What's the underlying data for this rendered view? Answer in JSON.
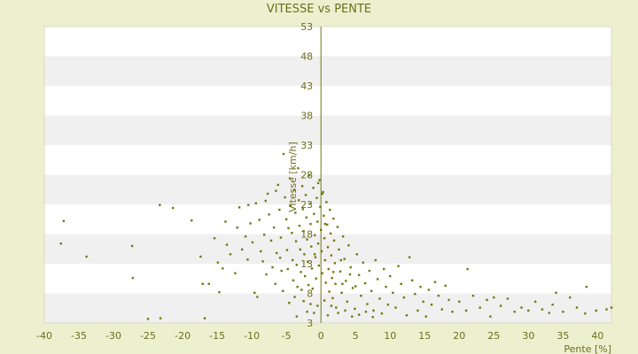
{
  "chart_data": {
    "type": "scatter",
    "title": "VITESSE vs PENTE",
    "xlabel": "Pente [%]",
    "ylabel": "Vitesse [km/h]",
    "xlim": [
      -40,
      42
    ],
    "ylim": [
      3,
      53
    ],
    "x_ticks": [
      -40,
      -35,
      -30,
      -25,
      -20,
      -15,
      -10,
      -5,
      0,
      5,
      10,
      15,
      20,
      25,
      30,
      35,
      40
    ],
    "y_ticks": [
      3,
      8,
      13,
      18,
      23,
      28,
      33,
      38,
      43,
      48,
      53
    ],
    "grid": "horizontal bands",
    "legend": "none",
    "colors": {
      "background": "#edf0cf",
      "band_light": "#ffffff",
      "band_shade": "#f0f0f0",
      "marker": "#6f7a12",
      "text": "#6b6f1c"
    },
    "series": [
      {
        "points": [
          [
            -37.2,
            20.2
          ],
          [
            -37.6,
            16.4
          ],
          [
            -33.9,
            14.2
          ],
          [
            -27.3,
            16.0
          ],
          [
            -27.2,
            10.6
          ],
          [
            -23.3,
            22.9
          ],
          [
            -25.0,
            3.7
          ],
          [
            -23.2,
            3.8
          ],
          [
            -21.4,
            22.4
          ],
          [
            -18.7,
            20.3
          ],
          [
            -17.4,
            14.2
          ],
          [
            -17.1,
            9.6
          ],
          [
            -16.2,
            9.6
          ],
          [
            -16.8,
            3.8
          ],
          [
            -15.4,
            17.3
          ],
          [
            -14.9,
            13.2
          ],
          [
            -14.7,
            8.2
          ],
          [
            -14.2,
            12.2
          ],
          [
            -13.8,
            20.1
          ],
          [
            -13.6,
            16.2
          ],
          [
            -13.1,
            14.6
          ],
          [
            -12.4,
            11.4
          ],
          [
            -12.1,
            19.1
          ],
          [
            -11.8,
            22.5
          ],
          [
            -11.4,
            15.4
          ],
          [
            -10.9,
            17.6
          ],
          [
            -10.6,
            13.7
          ],
          [
            -10.2,
            19.8
          ],
          [
            -9.9,
            16.6
          ],
          [
            -9.6,
            8.1
          ],
          [
            -9.4,
            23.2
          ],
          [
            -9.2,
            7.4
          ],
          [
            -8.9,
            20.4
          ],
          [
            -8.7,
            15.1
          ],
          [
            -8.4,
            13.4
          ],
          [
            -8.2,
            17.9
          ],
          [
            -7.9,
            11.2
          ],
          [
            -7.7,
            24.8
          ],
          [
            -7.5,
            21.3
          ],
          [
            -7.2,
            16.9
          ],
          [
            -7.0,
            12.4
          ],
          [
            -6.8,
            19.1
          ],
          [
            -6.6,
            9.6
          ],
          [
            -6.4,
            14.8
          ],
          [
            -6.2,
            26.3
          ],
          [
            -6.0,
            22.1
          ],
          [
            -5.8,
            17.4
          ],
          [
            -5.7,
            11.8
          ],
          [
            -5.5,
            8.4
          ],
          [
            -5.4,
            31.5
          ],
          [
            -5.2,
            24.2
          ],
          [
            -5.0,
            20.5
          ],
          [
            -4.9,
            15.3
          ],
          [
            -4.8,
            12.1
          ],
          [
            -4.6,
            6.4
          ],
          [
            -4.5,
            27.4
          ],
          [
            -4.4,
            22.8
          ],
          [
            -4.2,
            18.2
          ],
          [
            -4.1,
            13.6
          ],
          [
            -4.0,
            10.2
          ],
          [
            -3.9,
            25.4
          ],
          [
            -3.7,
            21.6
          ],
          [
            -3.6,
            16.8
          ],
          [
            -3.5,
            12.8
          ],
          [
            -3.4,
            9.1
          ],
          [
            -3.3,
            29.1
          ],
          [
            -3.2,
            23.7
          ],
          [
            -3.1,
            19.4
          ],
          [
            -3.0,
            15.4
          ],
          [
            -2.9,
            11.6
          ],
          [
            -2.8,
            8.6
          ],
          [
            -2.7,
            26.1
          ],
          [
            -2.6,
            22.2
          ],
          [
            -2.5,
            18.5
          ],
          [
            -2.4,
            14.6
          ],
          [
            -2.3,
            10.9
          ],
          [
            -2.2,
            24.6
          ],
          [
            -2.1,
            20.8
          ],
          [
            -2.0,
            17.1
          ],
          [
            -1.9,
            13.3
          ],
          [
            -1.8,
            9.4
          ],
          [
            -1.7,
            27.9
          ],
          [
            -1.6,
            23.1
          ],
          [
            -1.5,
            19.7
          ],
          [
            -1.4,
            15.9
          ],
          [
            -1.3,
            12.2
          ],
          [
            -1.2,
            8.8
          ],
          [
            -1.1,
            25.8
          ],
          [
            -1.0,
            21.4
          ],
          [
            -0.9,
            17.8
          ],
          [
            -0.8,
            14.1
          ],
          [
            -0.7,
            10.5
          ],
          [
            -0.6,
            24.1
          ],
          [
            -0.5,
            20.1
          ],
          [
            -0.4,
            16.4
          ],
          [
            -0.3,
            12.7
          ],
          [
            -0.2,
            27.1
          ],
          [
            -0.1,
            22.6
          ],
          [
            0.0,
            18.7
          ],
          [
            0.1,
            15.1
          ],
          [
            0.2,
            11.4
          ],
          [
            0.3,
            25.1
          ],
          [
            0.4,
            21.1
          ],
          [
            0.5,
            17.3
          ],
          [
            0.6,
            13.6
          ],
          [
            0.7,
            9.8
          ],
          [
            0.8,
            23.4
          ],
          [
            0.9,
            19.6
          ],
          [
            1.0,
            15.8
          ],
          [
            1.1,
            12.1
          ],
          [
            1.2,
            8.3
          ],
          [
            1.3,
            22.1
          ],
          [
            1.4,
            18.1
          ],
          [
            1.5,
            14.4
          ],
          [
            1.6,
            10.6
          ],
          [
            1.7,
            7.2
          ],
          [
            1.8,
            20.6
          ],
          [
            1.9,
            16.9
          ],
          [
            2.0,
            13.1
          ],
          [
            2.1,
            9.6
          ],
          [
            2.2,
            5.6
          ],
          [
            2.4,
            19.2
          ],
          [
            2.6,
            15.4
          ],
          [
            2.8,
            11.7
          ],
          [
            3.0,
            8.1
          ],
          [
            3.2,
            17.6
          ],
          [
            3.4,
            13.8
          ],
          [
            3.6,
            10.1
          ],
          [
            3.8,
            6.6
          ],
          [
            4.0,
            16.1
          ],
          [
            4.3,
            12.4
          ],
          [
            4.6,
            8.9
          ],
          [
            4.9,
            5.4
          ],
          [
            5.2,
            14.6
          ],
          [
            5.5,
            11.1
          ],
          [
            5.8,
            7.6
          ],
          [
            6.1,
            13.2
          ],
          [
            6.4,
            9.7
          ],
          [
            6.7,
            6.2
          ],
          [
            7.0,
            11.8
          ],
          [
            7.3,
            8.4
          ],
          [
            7.6,
            5.1
          ],
          [
            7.9,
            13.6
          ],
          [
            8.2,
            10.4
          ],
          [
            8.5,
            7.1
          ],
          [
            8.8,
            4.6
          ],
          [
            9.1,
            12.1
          ],
          [
            9.4,
            9.1
          ],
          [
            9.7,
            6.1
          ],
          [
            10.0,
            10.9
          ],
          [
            10.4,
            8.1
          ],
          [
            10.8,
            5.6
          ],
          [
            11.2,
            12.6
          ],
          [
            11.6,
            9.6
          ],
          [
            12.0,
            7.3
          ],
          [
            12.4,
            4.3
          ],
          [
            12.8,
            14.1
          ],
          [
            13.2,
            10.2
          ],
          [
            13.6,
            7.9
          ],
          [
            14.0,
            5.1
          ],
          [
            14.4,
            9.1
          ],
          [
            14.8,
            6.6
          ],
          [
            15.2,
            4.1
          ],
          [
            15.6,
            8.6
          ],
          [
            16.0,
            6.1
          ],
          [
            16.5,
            9.9
          ],
          [
            17.0,
            7.6
          ],
          [
            17.5,
            5.3
          ],
          [
            18.0,
            9.3
          ],
          [
            18.5,
            6.9
          ],
          [
            19.0,
            4.9
          ],
          [
            20.0,
            6.6
          ],
          [
            21.0,
            5.1
          ],
          [
            21.2,
            12.1
          ],
          [
            22.0,
            7.6
          ],
          [
            23.0,
            5.6
          ],
          [
            24.0,
            6.9
          ],
          [
            24.5,
            4.1
          ],
          [
            25.0,
            7.3
          ],
          [
            26.0,
            5.9
          ],
          [
            27.0,
            7.1
          ],
          [
            28.0,
            4.9
          ],
          [
            29.0,
            5.6
          ],
          [
            30.0,
            5.1
          ],
          [
            31.0,
            6.6
          ],
          [
            32.0,
            5.3
          ],
          [
            33.0,
            4.7
          ],
          [
            33.5,
            6.1
          ],
          [
            34.0,
            8.1
          ],
          [
            35.0,
            4.9
          ],
          [
            36.0,
            7.3
          ],
          [
            37.0,
            5.6
          ],
          [
            38.2,
            4.6
          ],
          [
            38.4,
            9.1
          ],
          [
            39.8,
            5.1
          ],
          [
            41.3,
            5.3
          ],
          [
            42.0,
            5.6
          ],
          [
            -10.5,
            22.9
          ],
          [
            -8.0,
            23.6
          ],
          [
            -6.5,
            25.3
          ],
          [
            -5.9,
            14.0
          ],
          [
            -4.7,
            19.0
          ],
          [
            -3.8,
            7.4
          ],
          [
            -3.5,
            4.1
          ],
          [
            -2.5,
            6.7
          ],
          [
            -2.0,
            4.9
          ],
          [
            -1.5,
            6.2
          ],
          [
            -1.0,
            4.7
          ],
          [
            -0.5,
            5.9
          ],
          [
            0.5,
            6.8
          ],
          [
            1.0,
            4.3
          ],
          [
            1.5,
            5.9
          ],
          [
            2.5,
            4.7
          ],
          [
            3.5,
            5.1
          ],
          [
            4.5,
            4.1
          ],
          [
            5.5,
            4.4
          ],
          [
            6.5,
            4.9
          ],
          [
            7.5,
            4.0
          ],
          [
            0.2,
            24.8
          ],
          [
            -0.4,
            26.6
          ],
          [
            0.6,
            19.7
          ],
          [
            -0.9,
            14.6
          ],
          [
            1.8,
            11.6
          ],
          [
            3.1,
            9.6
          ],
          [
            2.9,
            13.6
          ],
          [
            4.2,
            11.2
          ],
          [
            5.0,
            9.2
          ]
        ]
      }
    ]
  }
}
